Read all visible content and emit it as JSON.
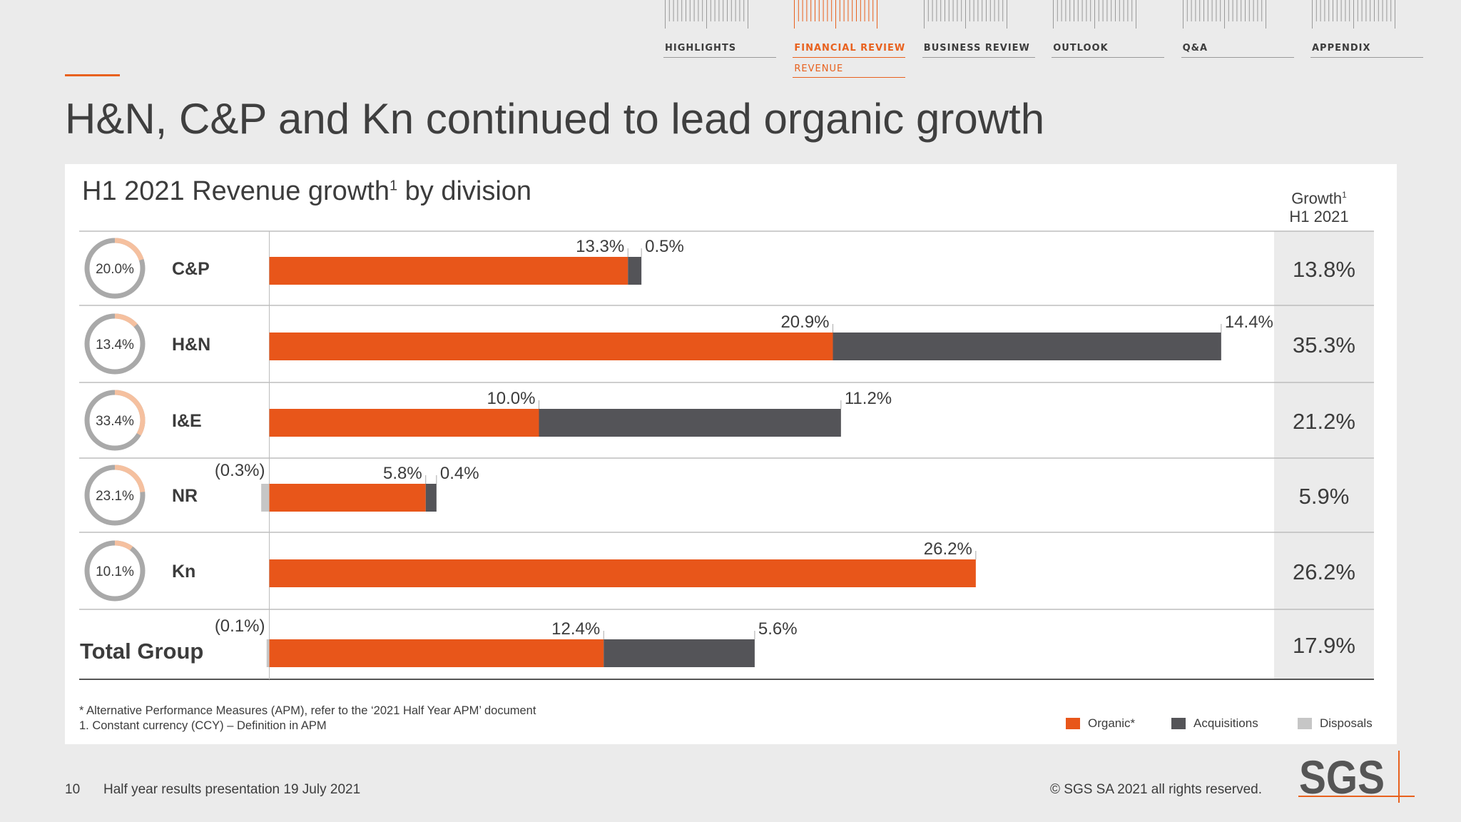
{
  "nav": {
    "items": [
      {
        "label": "HIGHLIGHTS",
        "active": false
      },
      {
        "label": "FINANCIAL REVIEW",
        "active": true,
        "sub": "REVENUE"
      },
      {
        "label": "BUSINESS REVIEW",
        "active": false
      },
      {
        "label": "OUTLOOK",
        "active": false
      },
      {
        "label": "Q&A",
        "active": false
      },
      {
        "label": "APPENDIX",
        "active": false
      }
    ]
  },
  "slide": {
    "title": "H&N, C&P and Kn continued to lead organic growth"
  },
  "chart_data": {
    "type": "bar",
    "orientation": "horizontal",
    "stacked": true,
    "title": "H1 2021 Revenue growth",
    "title_suffix": " by division",
    "title_sup": "1",
    "growth_header": {
      "line1": "Growth",
      "sup": "1",
      "line2": "H1 2021"
    },
    "categories": [
      "C&P",
      "H&N",
      "I&E",
      "NR",
      "Kn",
      "Total Group"
    ],
    "share_of_revenue": [
      20.0,
      13.4,
      33.4,
      23.1,
      10.1,
      null
    ],
    "share_labels": [
      "20.0%",
      "13.4%",
      "33.4%",
      "23.1%",
      "10.1%",
      ""
    ],
    "series": [
      {
        "name": "Organic*",
        "color": "#e8561a",
        "values": [
          13.3,
          20.9,
          10.0,
          5.8,
          26.2,
          12.4
        ],
        "labels": [
          "13.3%",
          "20.9%",
          "10.0%",
          "5.8%",
          "26.2%",
          "12.4%"
        ]
      },
      {
        "name": "Acquisitions",
        "color": "#545458",
        "values": [
          0.5,
          14.4,
          11.2,
          0.4,
          0,
          5.6
        ],
        "labels": [
          "0.5%",
          "14.4%",
          "11.2%",
          "0.4%",
          "",
          "5.6%"
        ]
      },
      {
        "name": "Disposals",
        "color": "#c6c6c6",
        "values": [
          0,
          0,
          0,
          -0.3,
          0,
          -0.1
        ],
        "labels": [
          "",
          "",
          "",
          "(0.3%)",
          "",
          "(0.1%)"
        ]
      }
    ],
    "growth_total": [
      "13.8%",
      "35.3%",
      "21.2%",
      "5.9%",
      "26.2%",
      "17.9%"
    ],
    "legend_position": "bottom-right"
  },
  "footnotes": [
    "*  Alternative Performance Measures (APM), refer to the ‘2021 Half Year APM’ document",
    "1. Constant currency (CCY) – Definition in APM"
  ],
  "footer": {
    "page": "10",
    "text": "Half year results presentation 19 July 2021",
    "copyright": "© SGS SA 2021 all rights reserved.",
    "logo": "SGS"
  },
  "colors": {
    "accent": "#e8611e",
    "organic": "#e8561a",
    "acquisitions": "#545458",
    "disposals": "#c6c6c6",
    "donut_share": "#f5c09f",
    "donut_rest": "#a9a9a9",
    "growth_column": "#ebebeb"
  }
}
